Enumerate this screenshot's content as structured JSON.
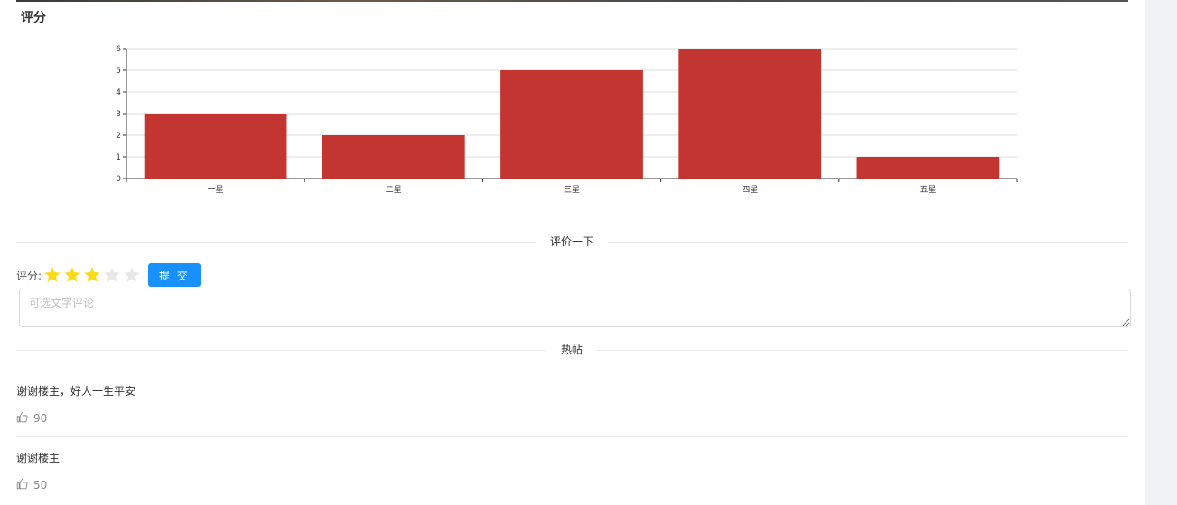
{
  "section_title": "评分",
  "chart_data": {
    "type": "bar",
    "categories": [
      "一星",
      "二星",
      "三星",
      "四星",
      "五星"
    ],
    "values": [
      3,
      2,
      5,
      6,
      1
    ],
    "ylim": [
      0,
      6
    ],
    "yticks": [
      0,
      1,
      2,
      3,
      4,
      5,
      6
    ],
    "grid": true,
    "bar_color": "#c23531",
    "title": "",
    "xlabel": "",
    "ylabel": ""
  },
  "rate_divider": "评价一下",
  "rating": {
    "label": "评分:",
    "value": 3,
    "max": 5,
    "active_color": "#fadb14",
    "inactive_color": "#e8e8e8",
    "submit_label": "提 交"
  },
  "comment": {
    "placeholder": "可选文字评论",
    "value": ""
  },
  "hot_divider": "热帖",
  "posts": [
    {
      "text": "谢谢楼主，好人一生平安",
      "likes": "90"
    },
    {
      "text": "谢谢楼主",
      "likes": "50"
    }
  ],
  "colors": {
    "accent": "#1890ff"
  }
}
